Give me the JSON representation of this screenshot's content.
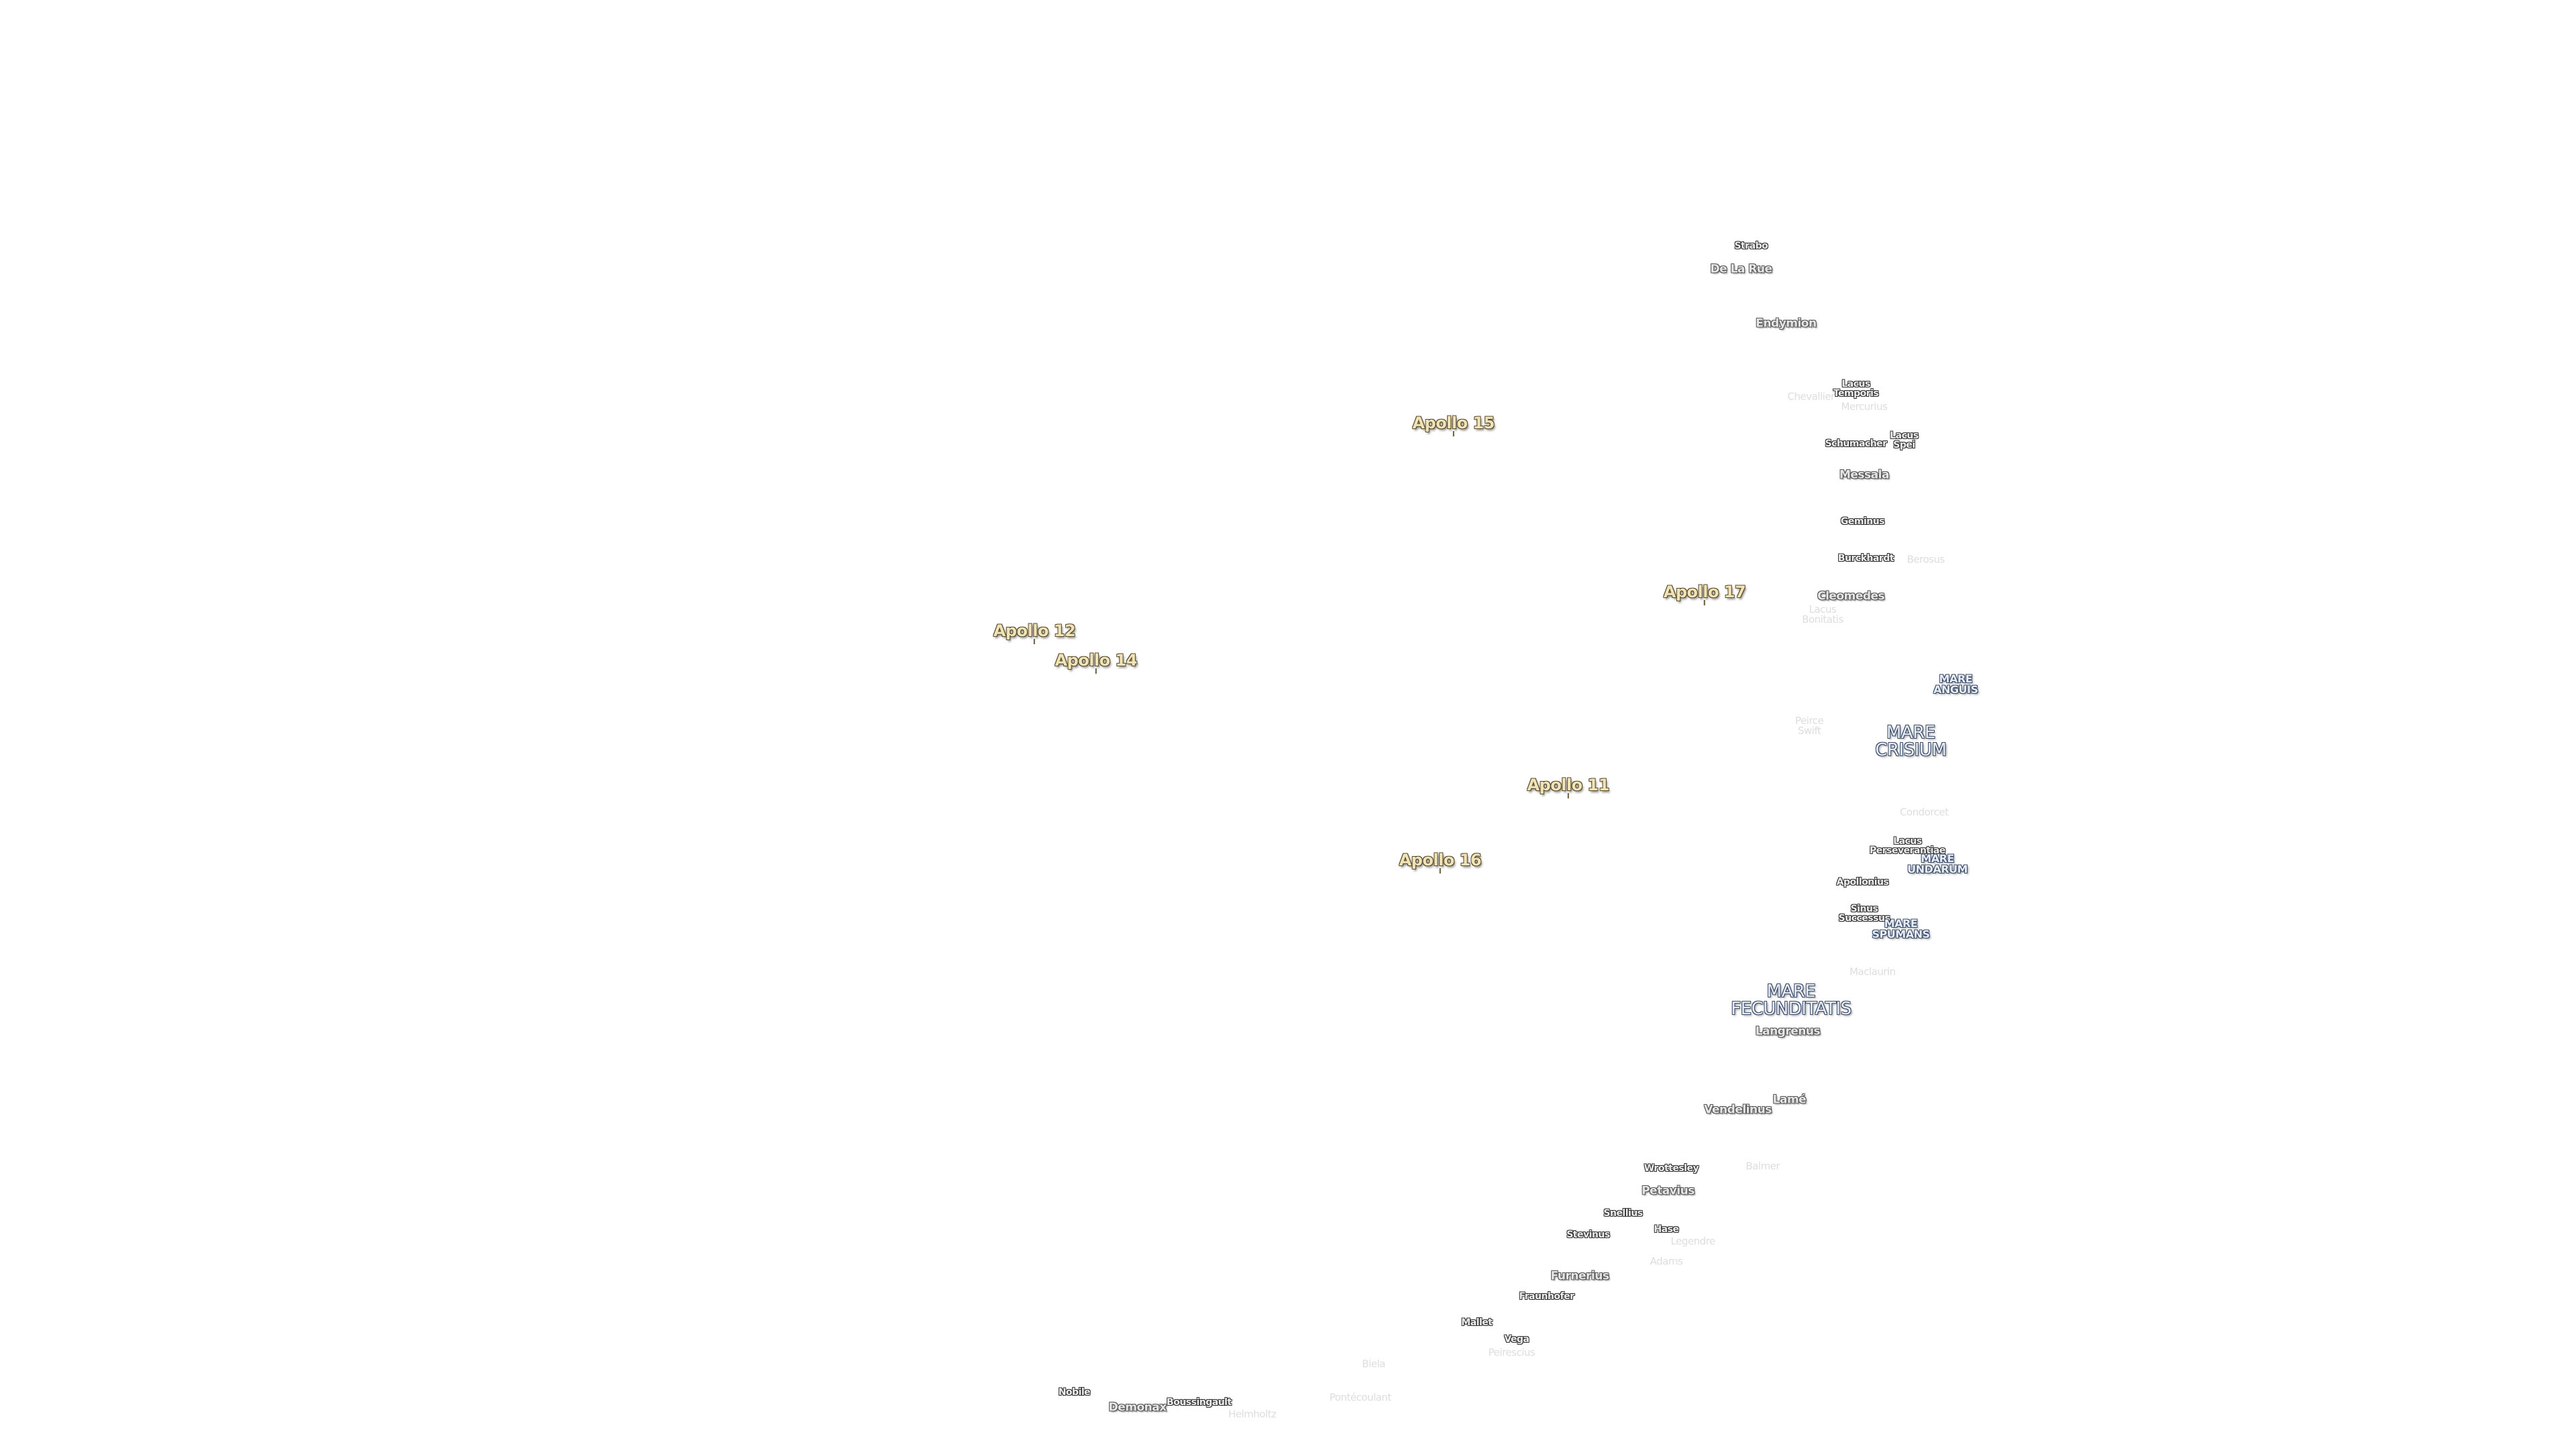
{
  "labels": [
    [
      "Strabo"
    ],
    [
      "De La Rue"
    ],
    [
      "Endymion"
    ],
    [
      "Lacus",
      "Temporis"
    ],
    [
      "Chevallier"
    ],
    [
      "Mercurius"
    ],
    [
      "Schumacher"
    ],
    [
      "Lacus",
      "Spei"
    ],
    [
      "Messala"
    ],
    [
      "Geminus"
    ],
    [
      "Burckhardt"
    ],
    [
      "Berosus"
    ],
    [
      "Apollo 15"
    ],
    [
      "Apollo 17"
    ],
    [
      "Apollo 12"
    ],
    [
      "Apollo 14"
    ],
    [
      "Apollo 11"
    ],
    [
      "Apollo 16"
    ],
    [
      "Cleomedes"
    ],
    [
      "Lacus",
      "Bonitatis"
    ],
    [
      "MARE",
      "ANGUIS"
    ],
    [
      "Peirce",
      "Swift"
    ],
    [
      "MARE",
      "CRISIUM"
    ],
    [
      "Condorcet"
    ],
    [
      "Lacus",
      "Perseverantiae"
    ],
    [
      "MARE",
      "UNDARUM"
    ],
    [
      "Apollonius"
    ],
    [
      "Sinus",
      "Successus"
    ],
    [
      "MARE",
      "SPUMANS"
    ],
    [
      "Maclaurin"
    ],
    [
      "MARE",
      "FECUNDITATIS"
    ],
    [
      "Langrenus"
    ],
    [
      "Lamé"
    ],
    [
      "Vendelinus"
    ],
    [
      "Wrottesley"
    ],
    [
      "Balmer"
    ],
    [
      "Petavius"
    ],
    [
      "Snellius"
    ],
    [
      "Hase"
    ],
    [
      "Legendre"
    ],
    [
      "Stevinus"
    ],
    [
      "Adams"
    ],
    [
      "Furnerius"
    ],
    [
      "Fraunhofer"
    ],
    [
      "Mallet"
    ],
    [
      "Vega"
    ],
    [
      "Peirescius"
    ],
    [
      "Biela"
    ],
    [
      "Pontécoulant"
    ],
    [
      "Nobile"
    ],
    [
      "Demonax"
    ],
    [
      "Boussingault"
    ],
    [
      "Helmholtz"
    ]
  ]
}
